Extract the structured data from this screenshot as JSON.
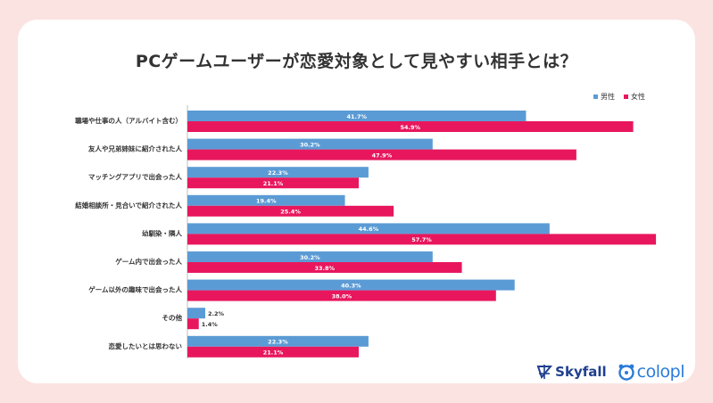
{
  "page": {
    "title": "PCゲームユーザーが恋愛対象として見やすい相手とは？",
    "logos": {
      "skyfall": "Skyfall",
      "colopl": "colopl"
    }
  },
  "colors": {
    "male": "#5b9bd5",
    "female": "#e8175d",
    "background": "#fbe3e1"
  },
  "chart_data": {
    "type": "bar",
    "orientation": "horizontal",
    "title": "PCゲームユーザーが恋愛対象として見やすい相手とは？",
    "categories": [
      "職場や仕事の人（アルバイト含む）",
      "友人や兄弟姉妹に紹介された人",
      "マッチングアプリで出会った人",
      "結婚相談所・見合いで紹介された人",
      "幼馴染・隣人",
      "ゲーム内で出会った人",
      "ゲーム以外の趣味で出会った人",
      "その他",
      "恋愛したいとは思わない"
    ],
    "series": [
      {
        "name": "男性",
        "color": "#5b9bd5",
        "values": [
          41.7,
          30.2,
          22.3,
          19.4,
          44.6,
          30.2,
          40.3,
          2.2,
          22.3
        ]
      },
      {
        "name": "女性",
        "color": "#e8175d",
        "values": [
          54.9,
          47.9,
          21.1,
          25.4,
          57.7,
          33.8,
          38.0,
          1.4,
          21.1
        ]
      }
    ],
    "value_labels": {
      "男性": [
        "41.7%",
        "30.2%",
        "22.3%",
        "19.4%",
        "44.6%",
        "30.2%",
        "40.3%",
        "2.2%",
        "22.3%"
      ],
      "女性": [
        "54.9%",
        "47.9%",
        "21.1%",
        "25.4%",
        "57.7%",
        "33.8%",
        "38.0%",
        "1.4%",
        "21.1%"
      ]
    },
    "xlim": [
      0,
      60
    ],
    "grid": false,
    "legend_position": "top-right"
  }
}
